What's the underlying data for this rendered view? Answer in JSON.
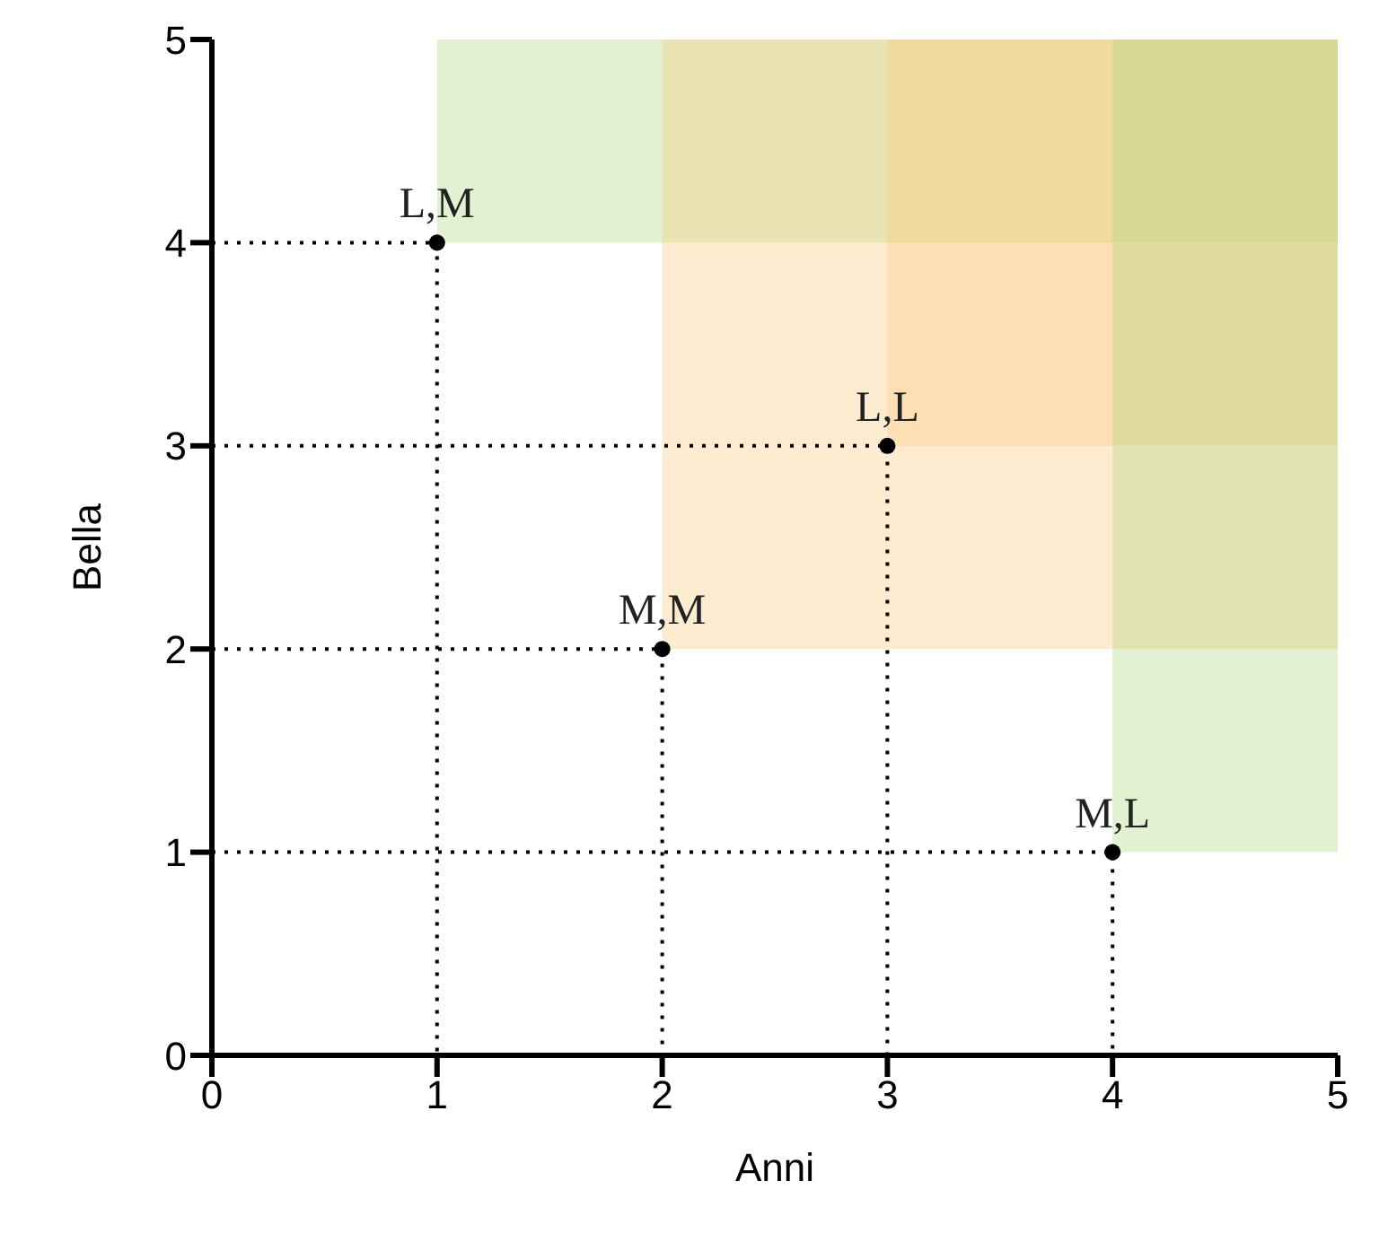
{
  "chart_data": {
    "type": "scatter",
    "xlabel": "Anni",
    "ylabel": "Bella",
    "xlim": [
      0,
      5
    ],
    "ylim": [
      0,
      5
    ],
    "xticks": [
      0,
      1,
      2,
      3,
      4,
      5
    ],
    "yticks": [
      0,
      1,
      2,
      3,
      4,
      5
    ],
    "grid": false,
    "legend": false,
    "series": [
      {
        "type": "line",
        "line_style": "dotted",
        "color": "#000000",
        "x": [
          0,
          1,
          1
        ],
        "values": [
          4,
          4,
          0
        ]
      },
      {
        "type": "line",
        "line_style": "dotted",
        "color": "#000000",
        "x": [
          0,
          2,
          2
        ],
        "values": [
          2,
          2,
          0
        ]
      },
      {
        "type": "line",
        "line_style": "dotted",
        "color": "#000000",
        "x": [
          0,
          3,
          3
        ],
        "values": [
          3,
          3,
          0
        ]
      },
      {
        "type": "line",
        "line_style": "dotted",
        "color": "#000000",
        "x": [
          0,
          4,
          4
        ],
        "values": [
          1,
          1,
          0
        ]
      },
      {
        "marker": "circle",
        "color": "#000000",
        "x": [
          1,
          2,
          3,
          4
        ],
        "values": [
          4,
          2,
          3,
          1
        ]
      }
    ],
    "annotations": [
      {
        "text": "L,M",
        "x": 1,
        "y": 4
      },
      {
        "text": "M,M",
        "x": 2,
        "y": 2
      },
      {
        "text": "L,L",
        "x": 3,
        "y": 3
      },
      {
        "text": "M,L",
        "x": 4,
        "y": 1
      }
    ]
  }
}
